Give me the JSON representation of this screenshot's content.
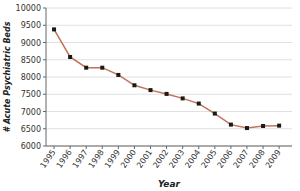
{
  "chart_data": {
    "type": "line",
    "x": [
      1995,
      1996,
      1997,
      1998,
      1999,
      2000,
      2001,
      2002,
      2003,
      2004,
      2005,
      2006,
      2007,
      2008,
      2009
    ],
    "values": [
      9380,
      8580,
      8270,
      8270,
      8060,
      7760,
      7620,
      7510,
      7380,
      7230,
      6940,
      6620,
      6520,
      6580,
      6590
    ],
    "xlim": [
      1994.5,
      2009.8
    ],
    "xticks": [
      1995,
      1996,
      1997,
      1998,
      1999,
      2000,
      2001,
      2002,
      2003,
      2004,
      2005,
      2006,
      2007,
      2008,
      2009
    ],
    "ylim": [
      6000,
      10000
    ],
    "yticks": [
      6000,
      6500,
      7000,
      7500,
      8000,
      8500,
      9000,
      9500,
      10000
    ],
    "xlabel": "Year",
    "ylabel": "# Acute Psychiatric Beds",
    "color": "#c0735a",
    "marker": "square",
    "grid": true
  }
}
